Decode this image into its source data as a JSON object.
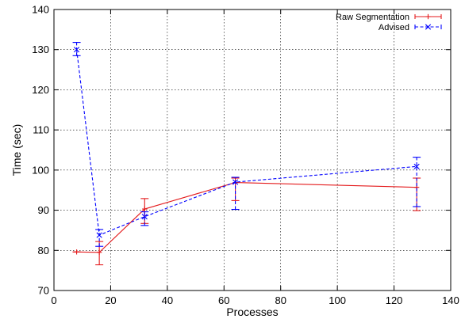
{
  "chart_data": {
    "type": "line",
    "title": "",
    "xlabel": "Processes",
    "ylabel": "Time (sec)",
    "xlim": [
      0,
      140
    ],
    "ylim": [
      70,
      140
    ],
    "xticks": [
      0,
      20,
      40,
      60,
      80,
      100,
      120,
      140
    ],
    "yticks": [
      70,
      80,
      90,
      100,
      110,
      120,
      130,
      140
    ],
    "grid": true,
    "legend_position": "top-right",
    "series": [
      {
        "name": "Raw Segmentation",
        "color": "#e41a1c",
        "dash": "solid",
        "marker": "plus",
        "points": [
          {
            "x": 8,
            "y": 79.6,
            "err_low": 79.6,
            "err_high": 79.6
          },
          {
            "x": 16,
            "y": 79.5,
            "err_low": 76.4,
            "err_high": 82.2
          },
          {
            "x": 32,
            "y": 90.3,
            "err_low": 86.7,
            "err_high": 92.9
          },
          {
            "x": 64,
            "y": 96.9,
            "err_low": 92.4,
            "err_high": 98.0
          },
          {
            "x": 128,
            "y": 95.7,
            "err_low": 89.9,
            "err_high": 98.0
          }
        ]
      },
      {
        "name": "Advised",
        "color": "#0000ff",
        "dash": "dashed",
        "marker": "cross",
        "points": [
          {
            "x": 8,
            "y": 130.0,
            "err_low": 128.5,
            "err_high": 131.8
          },
          {
            "x": 16,
            "y": 83.8,
            "err_low": 81.0,
            "err_high": 85.2
          },
          {
            "x": 32,
            "y": 88.4,
            "err_low": 86.2,
            "err_high": 89.6
          },
          {
            "x": 64,
            "y": 97.0,
            "err_low": 90.2,
            "err_high": 98.2
          },
          {
            "x": 128,
            "y": 100.9,
            "err_low": 90.9,
            "err_high": 103.2
          }
        ]
      }
    ]
  }
}
